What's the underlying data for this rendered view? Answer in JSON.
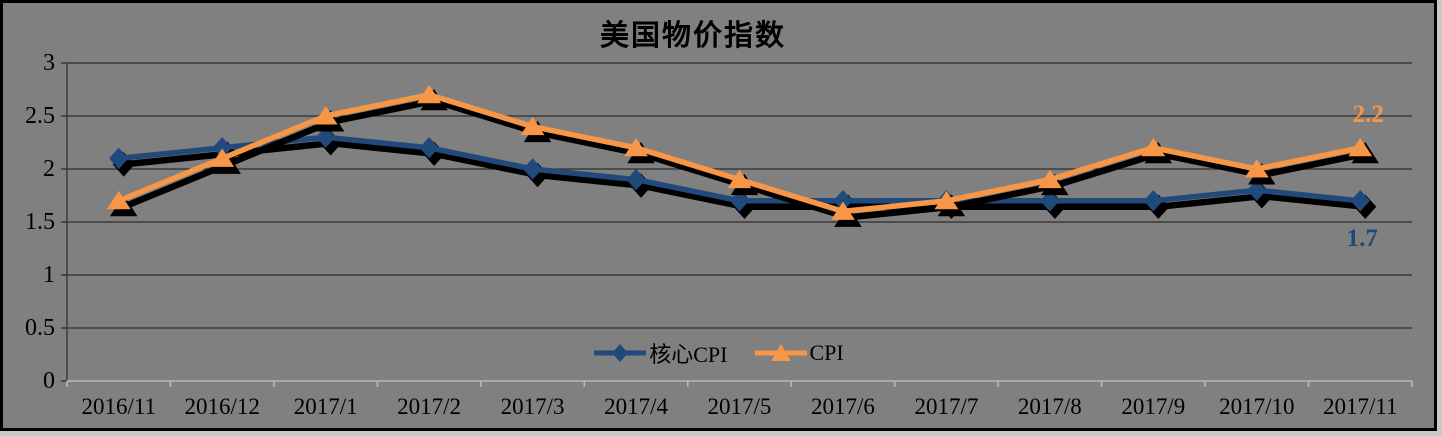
{
  "chart_data": {
    "type": "line",
    "title": "美国物价指数",
    "categories": [
      "2016/11",
      "2016/12",
      "2017/1",
      "2017/2",
      "2017/3",
      "2017/4",
      "2017/5",
      "2017/6",
      "2017/7",
      "2017/8",
      "2017/9",
      "2017/10",
      "2017/11"
    ],
    "series": [
      {
        "name": "核心CPI",
        "marker": "diamond",
        "color": "#20497C",
        "values": [
          2.1,
          2.2,
          2.3,
          2.2,
          2.0,
          1.9,
          1.7,
          1.7,
          1.7,
          1.7,
          1.7,
          1.8,
          1.7
        ],
        "end_label": "1.7",
        "end_label_position": "below"
      },
      {
        "name": "CPI",
        "marker": "triangle",
        "color": "#F79646",
        "values": [
          1.7,
          2.1,
          2.5,
          2.7,
          2.4,
          2.2,
          1.9,
          1.6,
          1.7,
          1.9,
          2.2,
          2.0,
          2.2
        ],
        "end_label": "2.2",
        "end_label_position": "above"
      }
    ],
    "ylim": [
      0,
      3
    ],
    "ytick_step": 0.5,
    "yticks": [
      "0",
      "0.5",
      "1",
      "1.5",
      "2",
      "2.5",
      "3"
    ],
    "grid": true,
    "legend_position": "bottom-center",
    "plot_background": "#808080",
    "gridline_color": "#2e2e2e",
    "axis_line_color": "#b8b8b8",
    "shadow_color": "#000000"
  }
}
